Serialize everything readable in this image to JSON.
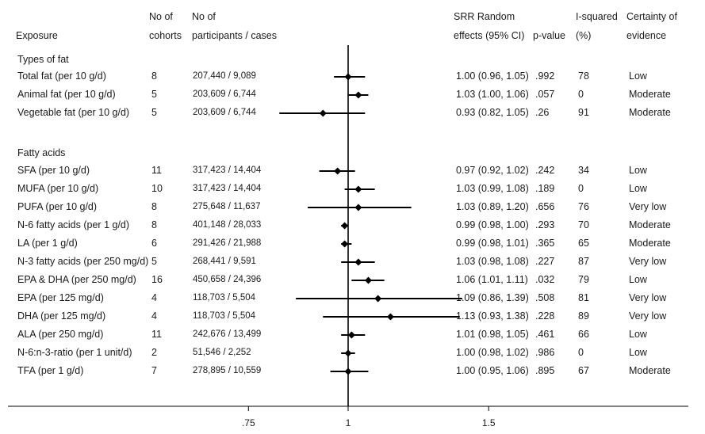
{
  "headers": {
    "exposure": "Exposure",
    "cohorts_1": "No of",
    "cohorts_2": "cohorts",
    "participants_1": "No of",
    "participants_2": "participants / cases",
    "srr_1": "SRR Random",
    "srr_2": "effects (95% CI)",
    "pvalue": "p-value",
    "isq_1": "I-squared",
    "isq_2": "(%)",
    "cert_1": "Certainty of",
    "cert_2": "evidence"
  },
  "sections": {
    "types_of_fat": "Types of fat",
    "fatty_acids": "Fatty acids"
  },
  "rows": [
    {
      "exposure": "Total fat (per 10 g/d)",
      "cohorts": "8",
      "participants": "207,440 / 9,089",
      "ci_text": "1.00 (0.96, 1.05)",
      "p": ".992",
      "i2": "78",
      "certainty": "Low"
    },
    {
      "exposure": "Animal fat (per 10 g/d)",
      "cohorts": "5",
      "participants": "203,609 / 6,744",
      "ci_text": "1.03 (1.00, 1.06)",
      "p": ".057",
      "i2": "0",
      "certainty": "Moderate"
    },
    {
      "exposure": "Vegetable fat (per 10 g/d)",
      "cohorts": "5",
      "participants": "203,609 / 6,744",
      "ci_text": "0.93 (0.82, 1.05)",
      "p": ".26",
      "i2": "91",
      "certainty": "Moderate"
    },
    {
      "exposure": "SFA (per 10 g/d)",
      "cohorts": "11",
      "participants": "317,423 / 14,404",
      "ci_text": "0.97 (0.92, 1.02)",
      "p": ".242",
      "i2": "34",
      "certainty": "Low"
    },
    {
      "exposure": "MUFA (per 10 g/d)",
      "cohorts": "10",
      "participants": "317,423 / 14,404",
      "ci_text": "1.03 (0.99, 1.08)",
      "p": ".189",
      "i2": "0",
      "certainty": "Low"
    },
    {
      "exposure": "PUFA (per 10 g/d)",
      "cohorts": "8",
      "participants": "275,648 / 11,637",
      "ci_text": "1.03 (0.89, 1.20)",
      "p": ".656",
      "i2": "76",
      "certainty": "Very low"
    },
    {
      "exposure": "N-6 fatty acids (per 1 g/d)",
      "cohorts": "8",
      "participants": "401,148 / 28,033",
      "ci_text": "0.99 (0.98, 1.00)",
      "p": ".293",
      "i2": "70",
      "certainty": "Moderate"
    },
    {
      "exposure": "LA (per 1 g/d)",
      "cohorts": "6",
      "participants": "291,426 / 21,988",
      "ci_text": "0.99 (0.98, 1.01)",
      "p": ".365",
      "i2": "65",
      "certainty": "Moderate"
    },
    {
      "exposure": "N-3 fatty acids (per 250 mg/d)",
      "cohorts": "5",
      "participants": "268,441 / 9,591",
      "ci_text": "1.03 (0.98, 1.08)",
      "p": ".227",
      "i2": "87",
      "certainty": "Very low"
    },
    {
      "exposure": "EPA & DHA (per 250 mg/d)",
      "cohorts": "16",
      "participants": "450,658 / 24,396",
      "ci_text": "1.06 (1.01, 1.11)",
      "p": ".032",
      "i2": "79",
      "certainty": "Low"
    },
    {
      "exposure": "EPA (per 125 mg/d)",
      "cohorts": "4",
      "participants": "118,703 / 5,504",
      "ci_text": "1.09 (0.86, 1.39)",
      "p": ".508",
      "i2": "81",
      "certainty": "Very low"
    },
    {
      "exposure": "DHA (per 125 mg/d)",
      "cohorts": "4",
      "participants": "118,703 / 5,504",
      "ci_text": "1.13 (0.93, 1.38)",
      "p": ".228",
      "i2": "89",
      "certainty": "Very low"
    },
    {
      "exposure": "ALA (per 250 mg/d)",
      "cohorts": "11",
      "participants": "242,676 / 13,499",
      "ci_text": "1.01 (0.98, 1.05)",
      "p": ".461",
      "i2": "66",
      "certainty": "Low"
    },
    {
      "exposure": "N-6:n-3-ratio (per 1 unit/d)",
      "cohorts": "2",
      "participants": "51,546 / 2,252",
      "ci_text": "1.00 (0.98, 1.02)",
      "p": ".986",
      "i2": "0",
      "certainty": "Low"
    },
    {
      "exposure": "TFA (per 1 g/d)",
      "cohorts": "7",
      "participants": "278,895 / 10,559",
      "ci_text": "1.00 (0.95, 1.06)",
      "p": ".895",
      "i2": "67",
      "certainty": "Moderate"
    }
  ],
  "chart_data": {
    "type": "forest",
    "title": "",
    "xlabel": "",
    "ylabel": "",
    "reference_line": 1,
    "x_ticks": [
      0.75,
      1,
      1.5
    ],
    "x_tick_labels": [
      ".75",
      "1",
      "1.5"
    ],
    "series": [
      {
        "name": "Total fat (per 10 g/d)",
        "estimate": 1.0,
        "lower": 0.96,
        "upper": 1.05
      },
      {
        "name": "Animal fat (per 10 g/d)",
        "estimate": 1.03,
        "lower": 1.0,
        "upper": 1.06
      },
      {
        "name": "Vegetable fat (per 10 g/d)",
        "estimate": 0.93,
        "lower": 0.82,
        "upper": 1.05
      },
      {
        "name": "SFA (per 10 g/d)",
        "estimate": 0.97,
        "lower": 0.92,
        "upper": 1.02
      },
      {
        "name": "MUFA (per 10 g/d)",
        "estimate": 1.03,
        "lower": 0.99,
        "upper": 1.08
      },
      {
        "name": "PUFA (per 10 g/d)",
        "estimate": 1.03,
        "lower": 0.89,
        "upper": 1.2
      },
      {
        "name": "N-6 fatty acids (per 1 g/d)",
        "estimate": 0.99,
        "lower": 0.98,
        "upper": 1.0
      },
      {
        "name": "LA (per 1 g/d)",
        "estimate": 0.99,
        "lower": 0.98,
        "upper": 1.01
      },
      {
        "name": "N-3 fatty acids (per 250 mg/d)",
        "estimate": 1.03,
        "lower": 0.98,
        "upper": 1.08
      },
      {
        "name": "EPA & DHA (per 250 mg/d)",
        "estimate": 1.06,
        "lower": 1.01,
        "upper": 1.11
      },
      {
        "name": "EPA (per 125 mg/d)",
        "estimate": 1.09,
        "lower": 0.86,
        "upper": 1.39
      },
      {
        "name": "DHA (per 125 mg/d)",
        "estimate": 1.13,
        "lower": 0.93,
        "upper": 1.38
      },
      {
        "name": "ALA (per 250 mg/d)",
        "estimate": 1.01,
        "lower": 0.98,
        "upper": 1.05
      },
      {
        "name": "N-6:n-3-ratio (per 1 unit/d)",
        "estimate": 1.0,
        "lower": 0.98,
        "upper": 1.02
      },
      {
        "name": "TFA (per 1 g/d)",
        "estimate": 1.0,
        "lower": 0.95,
        "upper": 1.06
      }
    ],
    "colors": {
      "line": "#000000",
      "marker": "#000000"
    }
  }
}
